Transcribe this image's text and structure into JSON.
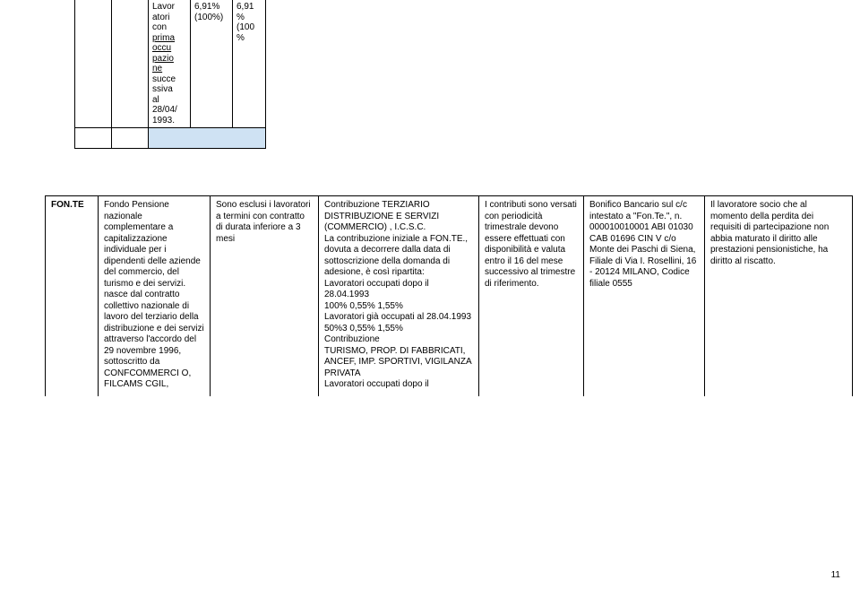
{
  "mini_table": {
    "c2_text": "Lavor atori con prima occu pazio ne succe ssiva al 28/04/ 1993.",
    "c3_text": "6,91% (100%)",
    "c4_text": "6,91 % (100 %",
    "underline_words": [
      "prima",
      "occu",
      "pazio",
      "ne"
    ]
  },
  "main_row": {
    "fund_name": "FON.TE",
    "col1": "Fondo Pensione nazionale complementare a capitalizzazione individuale per i dipendenti delle aziende del commercio, del turismo e dei servizi.\nnasce dal contratto collettivo nazionale di lavoro del terziario della distribuzione e dei servizi attraverso l'accordo del 29 novembre 1996, sottoscritto da CONFCOMMERCI O, FILCAMS CGIL,",
    "col2": "Sono esclusi i lavoratori a termini con contratto di durata inferiore a 3 mesi",
    "col3": "Contribuzione TERZIARIO DISTRIBUZIONE E SERVIZI (COMMERCIO) , I.C.S.C.\nLa contribuzione iniziale a FON.TE., dovuta a decorrere dalla data di sottoscrizione della domanda di adesione, è così ripartita:\nLavoratori occupati dopo il 28.04.1993\n100% 0,55% 1,55%\nLavoratori già occupati al 28.04.1993\n50%3 0,55% 1,55%\nContribuzione\nTURISMO, PROP. DI FABBRICATI, ANCEF, IMP. SPORTIVI, VIGILANZA PRIVATA\nLavoratori occupati dopo il",
    "col4": "I contributi sono versati con periodicità trimestrale devono essere effettuati con disponibilità e valuta entro il 16 del mese successivo al trimestre di riferimento.",
    "col5": "Bonifico Bancario sul c/c\nintestato a \"Fon.Te.\", n. 000010010001 ABI 01030 CAB 01696 CIN V c/o\nMonte dei Paschi di Siena, Filiale di Via I. Rosellini, 16 - 20124 MILANO, Codice filiale 0555",
    "col6": "Il lavoratore socio che al momento della perdita dei requisiti di partecipazione non abbia maturato il diritto alle prestazioni pensionistiche, ha diritto al riscatto."
  },
  "page_number": "11"
}
